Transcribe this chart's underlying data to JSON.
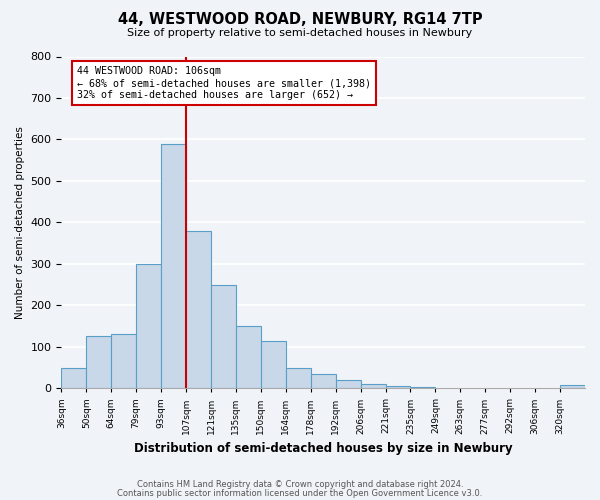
{
  "title": "44, WESTWOOD ROAD, NEWBURY, RG14 7TP",
  "subtitle": "Size of property relative to semi-detached houses in Newbury",
  "xlabel": "Distribution of semi-detached houses by size in Newbury",
  "ylabel": "Number of semi-detached properties",
  "bin_labels": [
    "36sqm",
    "50sqm",
    "64sqm",
    "79sqm",
    "93sqm",
    "107sqm",
    "121sqm",
    "135sqm",
    "150sqm",
    "164sqm",
    "178sqm",
    "192sqm",
    "206sqm",
    "221sqm",
    "235sqm",
    "249sqm",
    "263sqm",
    "277sqm",
    "292sqm",
    "306sqm",
    "320sqm"
  ],
  "bar_values": [
    50,
    125,
    130,
    300,
    590,
    380,
    250,
    150,
    115,
    50,
    35,
    20,
    10,
    5,
    2,
    1,
    1,
    1,
    1,
    1,
    8
  ],
  "bar_color": "#c8d8e8",
  "bar_edge_color": "#5a9fc8",
  "vline_x": 5,
  "vline_color": "#cc0000",
  "annotation_title": "44 WESTWOOD ROAD: 106sqm",
  "annotation_line1": "← 68% of semi-detached houses are smaller (1,398)",
  "annotation_line2": "32% of semi-detached houses are larger (652) →",
  "ylim": [
    0,
    800
  ],
  "yticks": [
    0,
    100,
    200,
    300,
    400,
    500,
    600,
    700,
    800
  ],
  "footnote1": "Contains HM Land Registry data © Crown copyright and database right 2024.",
  "footnote2": "Contains public sector information licensed under the Open Government Licence v3.0.",
  "bg_color": "#f0f4f8"
}
